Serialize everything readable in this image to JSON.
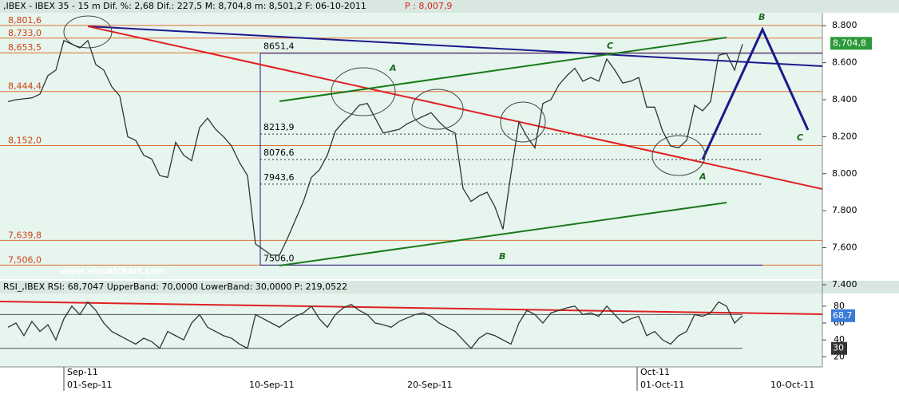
{
  "chart_data": [
    {
      "type": "line",
      "header": ",IBEX - IBEX 35 - 15 m Dif. %: 2,68 Dif.: 227,5 M: 8,704,8 m: 8,501,2 F: 06-10-2011",
      "header_price": "P : 8,007,9",
      "watermark": "www.visualchart.com",
      "color": "#333333",
      "values": [
        8390,
        8400,
        8405,
        8410,
        8430,
        8530,
        8560,
        8720,
        8700,
        8680,
        8720,
        8590,
        8560,
        8470,
        8420,
        8200,
        8180,
        8100,
        8080,
        7990,
        7980,
        8170,
        8100,
        8070,
        8250,
        8300,
        8240,
        8200,
        8150,
        8060,
        7990,
        7620,
        7590,
        7560,
        7560,
        7650,
        7750,
        7850,
        7980,
        8020,
        8100,
        8230,
        8280,
        8320,
        8370,
        8380,
        8300,
        8220,
        8230,
        8240,
        8270,
        8290,
        8310,
        8330,
        8280,
        8240,
        8220,
        7920,
        7850,
        7880,
        7900,
        7820,
        7700,
        8000,
        8280,
        8200,
        8140,
        8380,
        8400,
        8480,
        8530,
        8570,
        8500,
        8520,
        8500,
        8620,
        8560,
        8490,
        8500,
        8520,
        8360,
        8360,
        8230,
        8150,
        8140,
        8180,
        8370,
        8340,
        8390,
        8640,
        8650,
        8560,
        8700
      ],
      "ylim": [
        7430,
        8870
      ],
      "yticks": [
        {
          "value": 8800,
          "label": "8.800"
        },
        {
          "value": 8600,
          "label": "8.600"
        },
        {
          "value": 8400,
          "label": "8.400"
        },
        {
          "value": 8200,
          "label": "8.200"
        },
        {
          "value": 8000,
          "label": "8.000"
        },
        {
          "value": 7800,
          "label": "7.800"
        },
        {
          "value": 7600,
          "label": "7.600"
        },
        {
          "value": 7400,
          "label": "7.400"
        }
      ],
      "levels": [
        {
          "value": 8801.6,
          "label": "8,801,6"
        },
        {
          "value": 8733.0,
          "label": "8,733,0"
        },
        {
          "value": 8653.5,
          "label": "8,653,5"
        },
        {
          "value": 8444.4,
          "label": "8,444,4"
        },
        {
          "value": 8152.0,
          "label": "8,152,0"
        },
        {
          "value": 7639.8,
          "label": "7,639,8"
        },
        {
          "value": 7506.0,
          "label": "7,506,0"
        }
      ],
      "retracements": [
        {
          "value": 8651.4,
          "label": "8651,4"
        },
        {
          "value": 8213.9,
          "label": "8213,9"
        },
        {
          "value": 8076.6,
          "label": "8076,6"
        },
        {
          "value": 7943.6,
          "label": "7943,6"
        },
        {
          "value": 7506.0,
          "label": "7506,0"
        }
      ],
      "last": {
        "value": 8704.8,
        "label": "8,704,8"
      },
      "annotations": [
        "A",
        "C",
        "B",
        "C",
        "A",
        "B"
      ],
      "month_labels": [
        "Sep-11",
        "Oct-11"
      ],
      "x_labels": [
        "01-Sep-11",
        "10-Sep-11",
        "20-Sep-11",
        "01-Oct-11",
        "10-Oct-11"
      ]
    },
    {
      "type": "line",
      "header": "RSI_,IBEX RSI: 68,7047 UpperBand: 70,0000 LowerBand: 30,0000 P: 219,0522",
      "color": "#333333",
      "values": [
        55,
        60,
        45,
        62,
        50,
        58,
        40,
        65,
        80,
        70,
        85,
        75,
        60,
        50,
        45,
        40,
        35,
        42,
        38,
        30,
        50,
        45,
        40,
        60,
        70,
        55,
        50,
        45,
        42,
        35,
        30,
        70,
        65,
        60,
        55,
        62,
        68,
        72,
        80,
        65,
        55,
        70,
        78,
        82,
        75,
        70,
        60,
        58,
        55,
        62,
        66,
        70,
        72,
        68,
        60,
        55,
        50,
        40,
        30,
        42,
        48,
        45,
        40,
        35,
        60,
        75,
        70,
        60,
        72,
        75,
        78,
        80,
        70,
        72,
        68,
        80,
        70,
        60,
        65,
        68,
        45,
        50,
        40,
        35,
        45,
        50,
        70,
        68,
        72,
        85,
        80,
        60,
        68.7
      ],
      "ylim": [
        8,
        95
      ],
      "yticks": [
        80,
        60,
        40,
        20
      ],
      "bands": [
        70,
        30
      ],
      "last": {
        "value": 68.7,
        "label": "68,7"
      }
    }
  ]
}
